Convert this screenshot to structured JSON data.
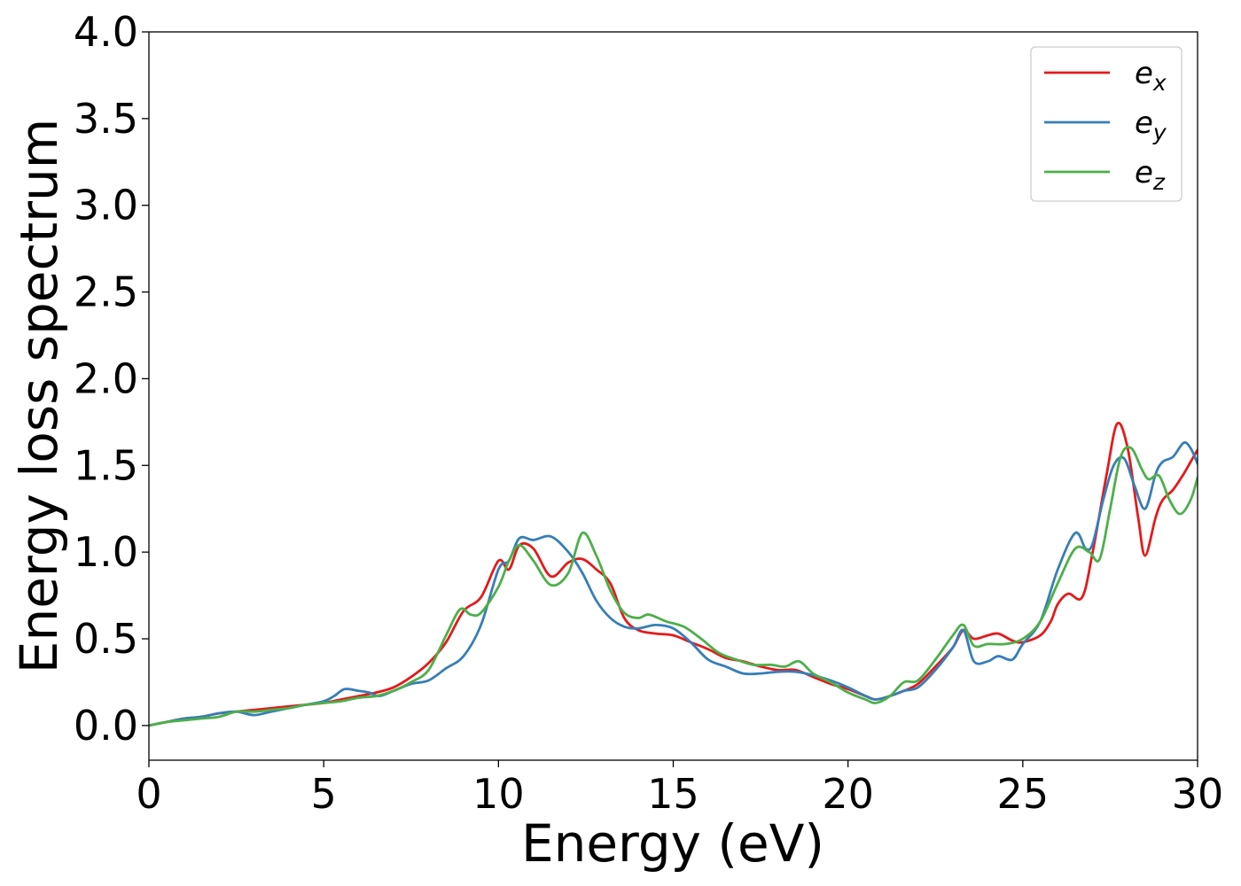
{
  "chart_data": {
    "type": "line",
    "title": "",
    "xlabel": "Energy (eV)",
    "ylabel": "Energy loss spectrum",
    "xlim": [
      0,
      30
    ],
    "ylim": [
      -0.2,
      4.0
    ],
    "xticks": [
      0,
      5,
      10,
      15,
      20,
      25,
      30
    ],
    "xtick_labels": [
      "0",
      "5",
      "10",
      "15",
      "20",
      "25",
      "30"
    ],
    "yticks": [
      0.0,
      0.5,
      1.0,
      1.5,
      2.0,
      2.5,
      3.0,
      3.5,
      4.0
    ],
    "ytick_labels": [
      "0.0",
      "0.5",
      "1.0",
      "1.5",
      "2.0",
      "2.5",
      "3.0",
      "3.5",
      "4.0"
    ],
    "grid": false,
    "legend_position": "top-right",
    "series": [
      {
        "name": "e_x",
        "label_base": "e",
        "label_sub": "x",
        "color": "#e41a1c",
        "x": [
          0,
          0.5,
          1,
          1.5,
          2,
          2.5,
          3,
          3.5,
          4,
          4.5,
          5,
          5.5,
          6,
          6.5,
          7,
          7.5,
          8,
          8.5,
          9,
          9.5,
          10,
          10.3,
          10.6,
          11,
          11.5,
          12,
          12.4,
          12.8,
          13.2,
          13.6,
          14,
          14.5,
          15,
          15.5,
          16,
          16.5,
          17,
          17.5,
          18,
          18.5,
          19,
          19.5,
          20,
          20.5,
          20.8,
          21.2,
          21.6,
          22,
          22.5,
          23,
          23.3,
          23.6,
          24,
          24.3,
          24.7,
          25,
          25.5,
          25.8,
          26,
          26.3,
          26.7,
          27,
          27.4,
          27.7,
          28,
          28.3,
          28.5,
          28.8,
          29,
          29.3,
          29.6,
          29.8,
          30
        ],
        "y": [
          0.0,
          0.02,
          0.04,
          0.05,
          0.07,
          0.08,
          0.09,
          0.1,
          0.11,
          0.12,
          0.13,
          0.15,
          0.17,
          0.19,
          0.22,
          0.28,
          0.36,
          0.48,
          0.66,
          0.74,
          0.95,
          0.9,
          1.04,
          1.02,
          0.86,
          0.94,
          0.96,
          0.9,
          0.82,
          0.62,
          0.55,
          0.53,
          0.52,
          0.48,
          0.44,
          0.39,
          0.37,
          0.34,
          0.32,
          0.32,
          0.28,
          0.24,
          0.21,
          0.17,
          0.15,
          0.17,
          0.2,
          0.24,
          0.34,
          0.45,
          0.55,
          0.5,
          0.52,
          0.53,
          0.49,
          0.48,
          0.52,
          0.6,
          0.7,
          0.76,
          0.74,
          1.0,
          1.45,
          1.74,
          1.6,
          1.2,
          0.98,
          1.2,
          1.3,
          1.36,
          1.45,
          1.52,
          1.59
        ]
      },
      {
        "name": "e_y",
        "label_base": "e",
        "label_sub": "y",
        "color": "#377eb8",
        "x": [
          0,
          0.5,
          1,
          1.5,
          2,
          2.5,
          3,
          3.5,
          4,
          4.5,
          5,
          5.3,
          5.6,
          6,
          6.3,
          6.6,
          7,
          7.5,
          8,
          8.5,
          9,
          9.5,
          10,
          10.3,
          10.6,
          11,
          11.5,
          12,
          12.4,
          12.8,
          13.2,
          13.6,
          14,
          14.5,
          15,
          15.5,
          16,
          16.5,
          17,
          17.5,
          18,
          18.5,
          19,
          19.5,
          20,
          20.5,
          20.8,
          21.2,
          21.6,
          22,
          22.5,
          23,
          23.3,
          23.6,
          24,
          24.3,
          24.7,
          25,
          25.5,
          26,
          26.5,
          26.8,
          27,
          27.3,
          27.6,
          27.9,
          28.2,
          28.5,
          28.8,
          29,
          29.3,
          29.6,
          29.8,
          30
        ],
        "y": [
          0.0,
          0.02,
          0.04,
          0.05,
          0.07,
          0.08,
          0.06,
          0.08,
          0.1,
          0.12,
          0.14,
          0.17,
          0.21,
          0.2,
          0.19,
          0.17,
          0.2,
          0.24,
          0.26,
          0.33,
          0.4,
          0.58,
          0.9,
          0.95,
          1.08,
          1.07,
          1.09,
          1.0,
          0.88,
          0.72,
          0.62,
          0.57,
          0.56,
          0.58,
          0.56,
          0.48,
          0.38,
          0.34,
          0.3,
          0.3,
          0.31,
          0.31,
          0.29,
          0.26,
          0.22,
          0.17,
          0.15,
          0.17,
          0.2,
          0.22,
          0.32,
          0.45,
          0.55,
          0.37,
          0.37,
          0.4,
          0.38,
          0.47,
          0.6,
          0.9,
          1.11,
          1.02,
          1.05,
          1.3,
          1.5,
          1.54,
          1.38,
          1.25,
          1.45,
          1.52,
          1.55,
          1.63,
          1.6,
          1.51
        ]
      },
      {
        "name": "e_z",
        "label_base": "e",
        "label_sub": "z",
        "color": "#4daf4a",
        "x": [
          0,
          0.5,
          1,
          1.5,
          2,
          2.5,
          3,
          3.5,
          4,
          4.5,
          5,
          5.5,
          6,
          6.5,
          7,
          7.5,
          8,
          8.5,
          8.9,
          9.2,
          9.5,
          10,
          10.3,
          10.6,
          11,
          11.5,
          12,
          12.4,
          12.8,
          13.2,
          13.6,
          14,
          14.3,
          14.8,
          15.3,
          15.8,
          16.3,
          16.8,
          17.3,
          17.8,
          18.2,
          18.6,
          19,
          19.5,
          20,
          20.5,
          20.8,
          21.2,
          21.6,
          22,
          22.5,
          23,
          23.3,
          23.6,
          24,
          24.5,
          25,
          25.5,
          26,
          26.5,
          26.9,
          27.2,
          27.5,
          27.8,
          28.1,
          28.4,
          28.6,
          28.9,
          29.2,
          29.5,
          29.8,
          30
        ],
        "y": [
          0.0,
          0.02,
          0.03,
          0.04,
          0.05,
          0.08,
          0.08,
          0.09,
          0.1,
          0.12,
          0.13,
          0.14,
          0.16,
          0.17,
          0.2,
          0.25,
          0.32,
          0.52,
          0.67,
          0.64,
          0.65,
          0.8,
          0.95,
          1.04,
          0.95,
          0.81,
          0.88,
          1.11,
          0.98,
          0.78,
          0.65,
          0.62,
          0.64,
          0.6,
          0.57,
          0.5,
          0.42,
          0.38,
          0.35,
          0.35,
          0.34,
          0.37,
          0.3,
          0.25,
          0.19,
          0.15,
          0.13,
          0.17,
          0.25,
          0.26,
          0.38,
          0.52,
          0.58,
          0.46,
          0.47,
          0.47,
          0.5,
          0.6,
          0.82,
          1.02,
          1.0,
          0.96,
          1.25,
          1.55,
          1.6,
          1.48,
          1.42,
          1.44,
          1.3,
          1.22,
          1.3,
          1.43
        ]
      }
    ]
  }
}
